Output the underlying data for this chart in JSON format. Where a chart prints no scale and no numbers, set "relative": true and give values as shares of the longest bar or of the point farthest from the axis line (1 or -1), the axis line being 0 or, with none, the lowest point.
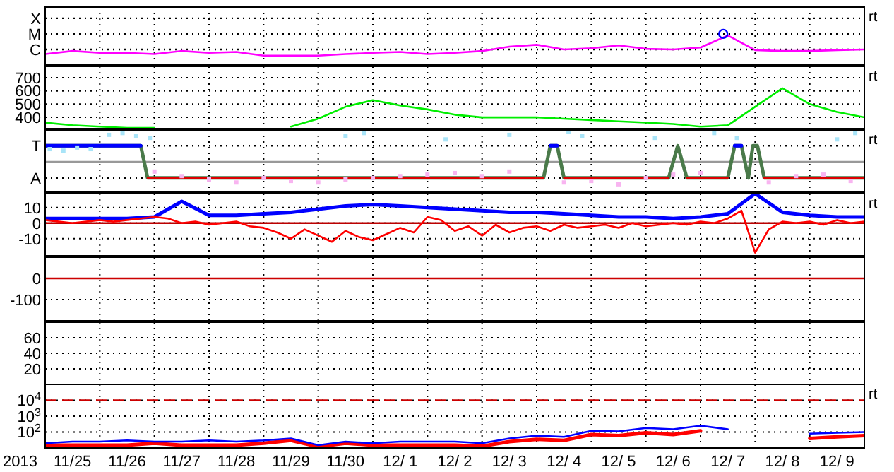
{
  "chart_data": [
    {
      "type": "line",
      "grid": true,
      "tick_labels": "y",
      "xlim": [
        "2013-11-25",
        "2013-12-10"
      ],
      "xticks": [
        {
          "value": "2013-11-26",
          "label": null
        },
        {
          "value": "2013-11-27",
          "label": null
        },
        {
          "value": "2013-11-28",
          "label": null
        },
        {
          "value": "2013-11-29",
          "label": null
        },
        {
          "value": "2013-11-30",
          "label": null
        },
        {
          "value": "2013-12-01",
          "label": null
        },
        {
          "value": "2013-12-02",
          "label": null
        },
        {
          "value": "2013-12-03",
          "label": null
        },
        {
          "value": "2013-12-04",
          "label": null
        },
        {
          "value": "2013-12-05",
          "label": null
        },
        {
          "value": "2013-12-06",
          "label": null
        },
        {
          "value": "2013-12-07",
          "label": null
        },
        {
          "value": "2013-12-08",
          "label": null
        },
        {
          "value": "2013-12-09",
          "label": null
        }
      ],
      "relative": true,
      "ref_lines": [
        {
          "axis": "y",
          "value": 0.5,
          "label": "C",
          "color": "#000000",
          "line_style": "dotted"
        },
        {
          "axis": "y",
          "value": 1,
          "label": "M",
          "color": "#000000",
          "line_style": "dotted"
        },
        {
          "axis": "y",
          "value": 1.5,
          "label": "X",
          "color": "#000000",
          "line_style": "dotted"
        }
      ],
      "x": [
        "2013-11-25T00:00",
        "2013-11-25T12:00",
        "2013-11-26T00:00",
        "2013-11-26T12:00",
        "2013-11-27T00:00",
        "2013-11-27T12:00",
        "2013-11-28T00:00",
        "2013-11-28T12:00",
        "2013-11-29T00:00",
        "2013-11-29T12:00",
        "2013-11-30T00:00",
        "2013-11-30T12:00",
        "2013-12-01T00:00",
        "2013-12-01T12:00",
        "2013-12-02T00:00",
        "2013-12-02T12:00",
        "2013-12-03T00:00",
        "2013-12-03T12:00",
        "2013-12-04T00:00",
        "2013-12-04T12:00",
        "2013-12-05T00:00",
        "2013-12-05T12:00",
        "2013-12-06T00:00",
        "2013-12-06T12:00",
        "2013-12-07T00:00",
        "2013-12-07T12:00",
        "2013-12-08T00:00",
        "2013-12-08T12:00",
        "2013-12-09T00:00",
        "2013-12-09T12:00",
        "2013-12-10T00:00"
      ],
      "series": [
        {
          "color": "#ff00ff",
          "values": [
            0.35,
            0.45,
            0.39,
            0.39,
            0.35,
            0.45,
            0.39,
            0.42,
            0.3,
            0.3,
            0.3,
            0.35,
            0.39,
            0.42,
            0.35,
            0.39,
            0.45,
            0.59,
            0.65,
            0.5,
            0.54,
            0.63,
            0.52,
            0.5,
            0.56,
            0.95,
            0.48,
            0.45,
            0.45,
            0.48,
            0.5
          ]
        },
        {
          "type": "scatter",
          "marker": "circle",
          "color": "#0000ff",
          "x": [
            "2013-12-07T10:00"
          ],
          "values": [
            1
          ]
        }
      ],
      "annotations": [
        "rt"
      ]
    },
    {
      "type": "line",
      "grid": true,
      "tick_labels": "y",
      "xlim": [
        "2013-11-25",
        "2013-12-10"
      ],
      "xticks": [
        {
          "value": "2013-11-26",
          "label": null
        },
        {
          "value": "2013-11-27",
          "label": null
        },
        {
          "value": "2013-11-28",
          "label": null
        },
        {
          "value": "2013-11-29",
          "label": null
        },
        {
          "value": "2013-11-30",
          "label": null
        },
        {
          "value": "2013-12-01",
          "label": null
        },
        {
          "value": "2013-12-02",
          "label": null
        },
        {
          "value": "2013-12-03",
          "label": null
        },
        {
          "value": "2013-12-04",
          "label": null
        },
        {
          "value": "2013-12-05",
          "label": null
        },
        {
          "value": "2013-12-06",
          "label": null
        },
        {
          "value": "2013-12-07",
          "label": null
        },
        {
          "value": "2013-12-08",
          "label": null
        },
        {
          "value": "2013-12-09",
          "label": null
        }
      ],
      "ylim": [
        315,
        785
      ],
      "yticks": [
        400,
        500,
        600,
        700
      ],
      "x": [
        "2013-11-25T00:00",
        "2013-11-25T12:00",
        "2013-11-26T00:00",
        "2013-11-26T12:00",
        "2013-11-27T00:00",
        "2013-11-27T12:00",
        "2013-11-28T00:00",
        "2013-11-28T12:00",
        "2013-11-29T00:00",
        "2013-11-29T12:00",
        "2013-11-30T00:00",
        "2013-11-30T12:00",
        "2013-12-01T00:00",
        "2013-12-01T12:00",
        "2013-12-02T00:00",
        "2013-12-02T12:00",
        "2013-12-03T00:00",
        "2013-12-03T12:00",
        "2013-12-04T00:00",
        "2013-12-04T12:00",
        "2013-12-05T00:00",
        "2013-12-05T12:00",
        "2013-12-06T00:00",
        "2013-12-06T12:00",
        "2013-12-07T00:00",
        "2013-12-07T12:00",
        "2013-12-08T00:00",
        "2013-12-08T12:00",
        "2013-12-09T00:00",
        "2013-12-09T12:00",
        "2013-12-10T00:00"
      ],
      "series": [
        {
          "color": "#00ee00",
          "values": [
            360,
            340,
            330,
            320,
            320,
            null,
            null,
            null,
            null,
            330,
            390,
            480,
            530,
            490,
            460,
            420,
            400,
            400,
            400,
            390,
            380,
            370,
            360,
            350,
            330,
            340,
            480,
            620,
            500,
            440,
            400
          ]
        }
      ],
      "annotations": [
        "rt"
      ]
    },
    {
      "type": "line",
      "grid": true,
      "tick_labels": "y",
      "xlim": [
        "2013-11-25",
        "2013-12-10"
      ],
      "xticks": [
        {
          "value": "2013-11-26",
          "label": null
        },
        {
          "value": "2013-11-27",
          "label": null
        },
        {
          "value": "2013-11-28",
          "label": null
        },
        {
          "value": "2013-11-29",
          "label": null
        },
        {
          "value": "2013-11-30",
          "label": null
        },
        {
          "value": "2013-12-01",
          "label": null
        },
        {
          "value": "2013-12-02",
          "label": null
        },
        {
          "value": "2013-12-03",
          "label": null
        },
        {
          "value": "2013-12-04",
          "label": null
        },
        {
          "value": "2013-12-05",
          "label": null
        },
        {
          "value": "2013-12-06",
          "label": null
        },
        {
          "value": "2013-12-07",
          "label": null
        },
        {
          "value": "2013-12-08",
          "label": null
        },
        {
          "value": "2013-12-09",
          "label": null
        }
      ],
      "relative": true,
      "ref_lines": [
        {
          "axis": "y",
          "value": 0,
          "color": "#999999"
        },
        {
          "axis": "y",
          "value": 0.53,
          "label": "T",
          "color": "#000000",
          "line_style": "dotted"
        },
        {
          "axis": "y",
          "value": -0.53,
          "label": "A",
          "color": "#000000",
          "line_style": "dotted"
        }
      ],
      "series": [
        {
          "type": "scatter",
          "marker": "square",
          "color": "#a8e4f8",
          "x": [
            "2013-11-25T02:00",
            "2013-11-25T08:00",
            "2013-11-25T14:00",
            "2013-11-25T20:00",
            "2013-11-26T04:00",
            "2013-11-26T10:00",
            "2013-11-26T16:00",
            "2013-11-26T22:00",
            "2013-11-30T12:00",
            "2013-11-30T20:00",
            "2013-12-02T08:00",
            "2013-12-03T12:00",
            "2013-12-04T14:00",
            "2013-12-04T20:00",
            "2013-12-06T04:00",
            "2013-12-07T06:00",
            "2013-12-07T16:00",
            "2013-12-09T12:00",
            "2013-12-09T20:00"
          ],
          "values": [
            0.42,
            0.37,
            0.47,
            0.42,
            0.89,
            0.95,
            0.84,
            0.79,
            0.84,
            0.95,
            0.74,
            0.89,
            1.0,
            0.84,
            0.79,
            0.95,
            0.79,
            0.74,
            0.95
          ]
        },
        {
          "type": "scatter",
          "marker": "square",
          "color": "#f8b4f0",
          "x": [
            "2013-11-27T00:00",
            "2013-11-27T12:00",
            "2013-11-28T00:00",
            "2013-11-28T12:00",
            "2013-11-29T00:00",
            "2013-11-29T12:00",
            "2013-11-30T00:00",
            "2013-11-30T12:00",
            "2013-12-01T00:00",
            "2013-12-01T12:00",
            "2013-12-02T00:00",
            "2013-12-02T12:00",
            "2013-12-03T00:00",
            "2013-12-03T12:00",
            "2013-12-04T12:00",
            "2013-12-05T00:00",
            "2013-12-05T12:00",
            "2013-12-06T00:00",
            "2013-12-06T12:00",
            "2013-12-07T00:00",
            "2013-12-08T06:00",
            "2013-12-08T18:00",
            "2013-12-09T06:00",
            "2013-12-09T18:00"
          ],
          "values": [
            -0.32,
            -0.47,
            -0.58,
            -0.68,
            -0.53,
            -0.63,
            -0.68,
            -0.58,
            -0.53,
            -0.47,
            -0.42,
            -0.37,
            -0.47,
            -0.32,
            -0.68,
            -0.63,
            -0.74,
            -0.53,
            -0.42,
            -0.37,
            -0.68,
            -0.47,
            -0.42,
            -0.63
          ]
        },
        {
          "color": "#4a7a4a",
          "x": [
            "2013-11-25T00:00",
            "2013-11-26T18:00",
            "2013-11-26T21:00",
            "2013-12-04T03:00",
            "2013-12-04T06:00",
            "2013-12-04T09:00",
            "2013-12-04T12:00",
            "2013-12-06T10:00",
            "2013-12-06T14:00",
            "2013-12-06T18:00",
            "2013-12-07T12:00",
            "2013-12-07T15:00",
            "2013-12-07T18:00",
            "2013-12-07T21:00",
            "2013-12-07T23:00",
            "2013-12-08T01:00",
            "2013-12-08T04:00",
            "2013-12-10T00:00"
          ],
          "values": [
            0.53,
            0.53,
            -0.53,
            -0.53,
            0.53,
            0.53,
            -0.53,
            -0.53,
            0.53,
            -0.53,
            -0.53,
            0.53,
            0.53,
            -0.53,
            0.53,
            0.53,
            -0.53,
            -0.53
          ]
        },
        {
          "color": "#0000ff",
          "x": [
            "2013-11-25T00:00",
            "2013-11-26T18:00",
            "2013-11-26T19:00",
            "2013-12-04T06:00",
            "2013-12-04T09:00",
            "2013-12-04T10:00",
            "2013-12-07T15:00",
            "2013-12-07T18:00"
          ],
          "values": [
            0.53,
            0.53,
            null,
            0.53,
            0.53,
            null,
            0.53,
            0.53
          ]
        },
        {
          "color": "#dd0000",
          "x": [
            "2013-11-26T21:00",
            "2013-12-04T03:00",
            "2013-12-04T04:00",
            "2013-12-04T12:00",
            "2013-12-06T10:00",
            "2013-12-06T11:00",
            "2013-12-06T18:00",
            "2013-12-07T12:00",
            "2013-12-07T13:00",
            "2013-12-08T04:00",
            "2013-12-10T00:00"
          ],
          "values": [
            -0.53,
            -0.53,
            null,
            -0.53,
            -0.53,
            null,
            -0.53,
            -0.53,
            null,
            -0.53,
            -0.53
          ]
        }
      ],
      "annotations": [
        "rt"
      ]
    },
    {
      "type": "line",
      "grid": true,
      "tick_labels": "y",
      "xlim": [
        "2013-11-25",
        "2013-12-10"
      ],
      "xticks": [
        {
          "value": "2013-11-26",
          "label": null
        },
        {
          "value": "2013-11-27",
          "label": null
        },
        {
          "value": "2013-11-28",
          "label": null
        },
        {
          "value": "2013-11-29",
          "label": null
        },
        {
          "value": "2013-11-30",
          "label": null
        },
        {
          "value": "2013-12-01",
          "label": null
        },
        {
          "value": "2013-12-02",
          "label": null
        },
        {
          "value": "2013-12-03",
          "label": null
        },
        {
          "value": "2013-12-04",
          "label": null
        },
        {
          "value": "2013-12-05",
          "label": null
        },
        {
          "value": "2013-12-06",
          "label": null
        },
        {
          "value": "2013-12-07",
          "label": null
        },
        {
          "value": "2013-12-08",
          "label": null
        },
        {
          "value": "2013-12-09",
          "label": null
        }
      ],
      "ylim": [
        -21,
        19
      ],
      "yticks": [
        -10,
        0,
        10
      ],
      "ref_lines": [
        {
          "axis": "y",
          "value": 0,
          "color": "#bb0000"
        }
      ],
      "series": [
        {
          "color": "#0000ff",
          "x": [
            "2013-11-25T00:00",
            "2013-11-25T12:00",
            "2013-11-26T00:00",
            "2013-11-26T12:00",
            "2013-11-27T00:00",
            "2013-11-27T12:00",
            "2013-11-28T00:00",
            "2013-11-28T12:00",
            "2013-11-29T00:00",
            "2013-11-29T12:00",
            "2013-11-30T00:00",
            "2013-11-30T12:00",
            "2013-12-01T00:00",
            "2013-12-01T12:00",
            "2013-12-02T00:00",
            "2013-12-02T12:00",
            "2013-12-03T00:00",
            "2013-12-03T12:00",
            "2013-12-04T00:00",
            "2013-12-04T12:00",
            "2013-12-05T00:00",
            "2013-12-05T12:00",
            "2013-12-06T00:00",
            "2013-12-06T12:00",
            "2013-12-07T00:00",
            "2013-12-07T12:00",
            "2013-12-08T00:00",
            "2013-12-08T12:00",
            "2013-12-09T00:00",
            "2013-12-09T12:00",
            "2013-12-10T00:00"
          ],
          "values": [
            3,
            3,
            3,
            3,
            4,
            14,
            5,
            5,
            6,
            7,
            9,
            11,
            12,
            11,
            10,
            9,
            8,
            7,
            7,
            6,
            5,
            4,
            4,
            3,
            4,
            6,
            19,
            7,
            5,
            4,
            4
          ]
        },
        {
          "color": "#ff0000",
          "x": [
            "2013-11-25T00:00",
            "2013-11-25T06:00",
            "2013-11-25T12:00",
            "2013-11-25T18:00",
            "2013-11-26T00:00",
            "2013-11-26T06:00",
            "2013-11-26T12:00",
            "2013-11-26T18:00",
            "2013-11-27T00:00",
            "2013-11-27T06:00",
            "2013-11-27T12:00",
            "2013-11-27T18:00",
            "2013-11-28T00:00",
            "2013-11-28T06:00",
            "2013-11-28T12:00",
            "2013-11-28T18:00",
            "2013-11-29T00:00",
            "2013-11-29T06:00",
            "2013-11-29T12:00",
            "2013-11-29T18:00",
            "2013-11-30T00:00",
            "2013-11-30T06:00",
            "2013-11-30T12:00",
            "2013-11-30T18:00",
            "2013-12-01T00:00",
            "2013-12-01T06:00",
            "2013-12-01T12:00",
            "2013-12-01T18:00",
            "2013-12-02T00:00",
            "2013-12-02T06:00",
            "2013-12-02T12:00",
            "2013-12-02T18:00",
            "2013-12-03T00:00",
            "2013-12-03T06:00",
            "2013-12-03T12:00",
            "2013-12-03T18:00",
            "2013-12-04T00:00",
            "2013-12-04T06:00",
            "2013-12-04T12:00",
            "2013-12-04T18:00",
            "2013-12-05T00:00",
            "2013-12-05T06:00",
            "2013-12-05T12:00",
            "2013-12-05T18:00",
            "2013-12-06T00:00",
            "2013-12-06T06:00",
            "2013-12-06T12:00",
            "2013-12-06T18:00",
            "2013-12-07T00:00",
            "2013-12-07T06:00",
            "2013-12-07T12:00",
            "2013-12-07T18:00",
            "2013-12-08T00:00",
            "2013-12-08T06:00",
            "2013-12-08T12:00",
            "2013-12-08T18:00",
            "2013-12-09T00:00",
            "2013-12-09T06:00",
            "2013-12-09T12:00",
            "2013-12-09T18:00",
            "2013-12-10T00:00"
          ],
          "values": [
            2,
            1,
            0,
            1,
            2,
            1,
            2,
            3,
            4,
            3,
            0,
            1,
            -1,
            0,
            1,
            -2,
            -3,
            -6,
            -10,
            -4,
            -8,
            -12,
            -5,
            -9,
            -11,
            -7,
            -3,
            -6,
            4,
            2,
            -5,
            -2,
            -8,
            -1,
            -6,
            -3,
            -2,
            -5,
            -1,
            -3,
            -2,
            -1,
            -3,
            0,
            -2,
            -1,
            0,
            -1,
            1,
            0,
            3,
            8,
            -19,
            -4,
            1,
            0,
            1,
            -1,
            2,
            0,
            1
          ]
        }
      ],
      "annotations": [
        "rt"
      ]
    },
    {
      "type": "line",
      "grid": true,
      "tick_labels": "y",
      "xlim": [
        "2013-11-25",
        "2013-12-10"
      ],
      "xticks": [
        {
          "value": "2013-11-26",
          "label": null
        },
        {
          "value": "2013-11-27",
          "label": null
        },
        {
          "value": "2013-11-28",
          "label": null
        },
        {
          "value": "2013-11-29",
          "label": null
        },
        {
          "value": "2013-11-30",
          "label": null
        },
        {
          "value": "2013-12-01",
          "label": null
        },
        {
          "value": "2013-12-02",
          "label": null
        },
        {
          "value": "2013-12-03",
          "label": null
        },
        {
          "value": "2013-12-04",
          "label": null
        },
        {
          "value": "2013-12-05",
          "label": null
        },
        {
          "value": "2013-12-06",
          "label": null
        },
        {
          "value": "2013-12-07",
          "label": null
        },
        {
          "value": "2013-12-08",
          "label": null
        },
        {
          "value": "2013-12-09",
          "label": null
        }
      ],
      "ylim": [
        -200,
        100
      ],
      "yticks": [
        -100,
        0
      ],
      "ref_lines": [
        {
          "axis": "y",
          "value": 0,
          "color": "#cc0000"
        }
      ]
    },
    {
      "type": "line",
      "grid": true,
      "tick_labels": "y",
      "xlim": [
        "2013-11-25",
        "2013-12-10"
      ],
      "xticks": [
        {
          "value": "2013-11-26",
          "label": null
        },
        {
          "value": "2013-11-27",
          "label": null
        },
        {
          "value": "2013-11-28",
          "label": null
        },
        {
          "value": "2013-11-29",
          "label": null
        },
        {
          "value": "2013-11-30",
          "label": null
        },
        {
          "value": "2013-12-01",
          "label": null
        },
        {
          "value": "2013-12-02",
          "label": null
        },
        {
          "value": "2013-12-03",
          "label": null
        },
        {
          "value": "2013-12-04",
          "label": null
        },
        {
          "value": "2013-12-05",
          "label": null
        },
        {
          "value": "2013-12-06",
          "label": null
        },
        {
          "value": "2013-12-07",
          "label": null
        },
        {
          "value": "2013-12-08",
          "label": null
        },
        {
          "value": "2013-12-09",
          "label": null
        }
      ],
      "ylim": [
        0,
        80
      ],
      "yticks": [
        20,
        40,
        60
      ]
    },
    {
      "type": "line",
      "log": true,
      "grid": true,
      "xlabel": "2013",
      "xlim": [
        "2013-11-25",
        "2013-12-10"
      ],
      "xticks": [
        {
          "value": "2013-11-25T12:00",
          "label": "11/25"
        },
        {
          "value": "2013-11-26",
          "label": null
        },
        {
          "value": "2013-11-26T12:00",
          "label": "11/26"
        },
        {
          "value": "2013-11-27",
          "label": null
        },
        {
          "value": "2013-11-27T12:00",
          "label": "11/27"
        },
        {
          "value": "2013-11-28",
          "label": null
        },
        {
          "value": "2013-11-28T12:00",
          "label": "11/28"
        },
        {
          "value": "2013-11-29",
          "label": null
        },
        {
          "value": "2013-11-29T12:00",
          "label": "11/29"
        },
        {
          "value": "2013-11-30",
          "label": null
        },
        {
          "value": "2013-11-30T12:00",
          "label": "11/30"
        },
        {
          "value": "2013-12-01",
          "label": null
        },
        {
          "value": "2013-12-01T12:00",
          "label": "12/ 1"
        },
        {
          "value": "2013-12-02",
          "label": null
        },
        {
          "value": "2013-12-02T12:00",
          "label": "12/ 2"
        },
        {
          "value": "2013-12-03",
          "label": null
        },
        {
          "value": "2013-12-03T12:00",
          "label": "12/ 3"
        },
        {
          "value": "2013-12-04",
          "label": null
        },
        {
          "value": "2013-12-04T12:00",
          "label": "12/ 4"
        },
        {
          "value": "2013-12-05",
          "label": null
        },
        {
          "value": "2013-12-05T12:00",
          "label": "12/ 5"
        },
        {
          "value": "2013-12-06",
          "label": null
        },
        {
          "value": "2013-12-06T12:00",
          "label": "12/ 6"
        },
        {
          "value": "2013-12-07",
          "label": null
        },
        {
          "value": "2013-12-07T12:00",
          "label": "12/ 7"
        },
        {
          "value": "2013-12-08",
          "label": null
        },
        {
          "value": "2013-12-08T12:00",
          "label": "12/ 8"
        },
        {
          "value": "2013-12-09",
          "label": null
        },
        {
          "value": "2013-12-09T12:00",
          "label": "12/ 9"
        }
      ],
      "ylim": [
        10,
        100000
      ],
      "yticks": [
        {
          "value": 100,
          "label": "10$^{2}$"
        },
        {
          "value": 1000,
          "label": "10$^{3}$"
        },
        {
          "value": 10000,
          "label": "10$^{4}$"
        }
      ],
      "ref_lines": [
        {
          "axis": "y",
          "value": 10000,
          "color": "#cc0000",
          "line_style": "dashed"
        }
      ],
      "x": [
        "2013-11-25T00:00",
        "2013-11-25T12:00",
        "2013-11-26T00:00",
        "2013-11-26T12:00",
        "2013-11-27T00:00",
        "2013-11-27T12:00",
        "2013-11-28T00:00",
        "2013-11-28T12:00",
        "2013-11-29T00:00",
        "2013-11-29T12:00",
        "2013-11-30T00:00",
        "2013-11-30T12:00",
        "2013-12-01T00:00",
        "2013-12-01T12:00",
        "2013-12-02T00:00",
        "2013-12-02T12:00",
        "2013-12-03T00:00",
        "2013-12-03T12:00",
        "2013-12-04T00:00",
        "2013-12-04T12:00",
        "2013-12-05T00:00",
        "2013-12-05T12:00",
        "2013-12-06T00:00",
        "2013-12-06T12:00",
        "2013-12-07T00:00",
        "2013-12-07T12:00",
        "2013-12-08T00:00",
        "2013-12-08T12:00",
        "2013-12-09T00:00",
        "2013-12-09T12:00",
        "2013-12-10T00:00"
      ],
      "series": [
        {
          "color": "#ff0000",
          "values": [
            15,
            15,
            15,
            15,
            20,
            15,
            15,
            15,
            20,
            30,
            12,
            20,
            15,
            15,
            15,
            15,
            13,
            25,
            35,
            30,
            70,
            60,
            90,
            70,
            120,
            null,
            null,
            null,
            40,
            50,
            60
          ]
        },
        {
          "color": "#0000ff",
          "values": [
            20,
            25,
            25,
            30,
            25,
            25,
            30,
            25,
            30,
            40,
            15,
            25,
            20,
            25,
            25,
            25,
            20,
            40,
            60,
            50,
            120,
            110,
            180,
            150,
            250,
            150,
            null,
            null,
            80,
            90,
            100
          ]
        }
      ],
      "annotations": [
        "rt"
      ]
    }
  ]
}
